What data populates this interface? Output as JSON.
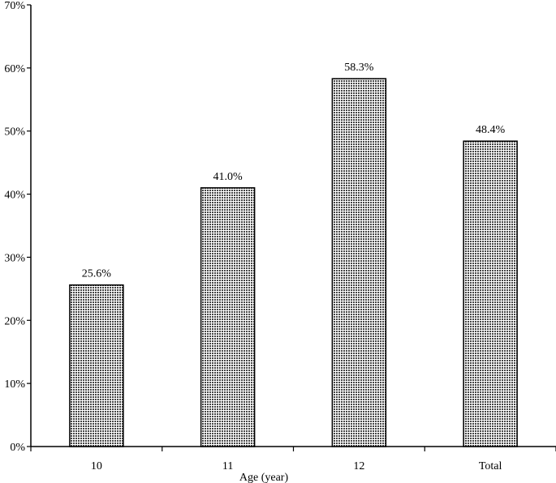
{
  "chart_data": {
    "type": "bar",
    "categories": [
      "10",
      "11",
      "12",
      "Total"
    ],
    "values": [
      25.6,
      41.0,
      58.3,
      48.4
    ],
    "data_labels": [
      "25.6%",
      "41.0%",
      "58.3%",
      "48.4%"
    ],
    "xlabel": "Age (year)",
    "ylabel": "",
    "ylim": [
      0,
      70
    ],
    "yticks": [
      0,
      10,
      20,
      30,
      40,
      50,
      60,
      70
    ],
    "ytick_labels": [
      "0%",
      "10%",
      "20%",
      "30%",
      "40%",
      "50%",
      "60%",
      "70%"
    ],
    "grid": false,
    "legend": "none",
    "bar_fill": "#444444",
    "bar_pattern": "dotted",
    "colors": {
      "bar_dots": "#444444",
      "bar_background": "#ffffff",
      "axis": "#000000",
      "text": "#000000"
    }
  }
}
